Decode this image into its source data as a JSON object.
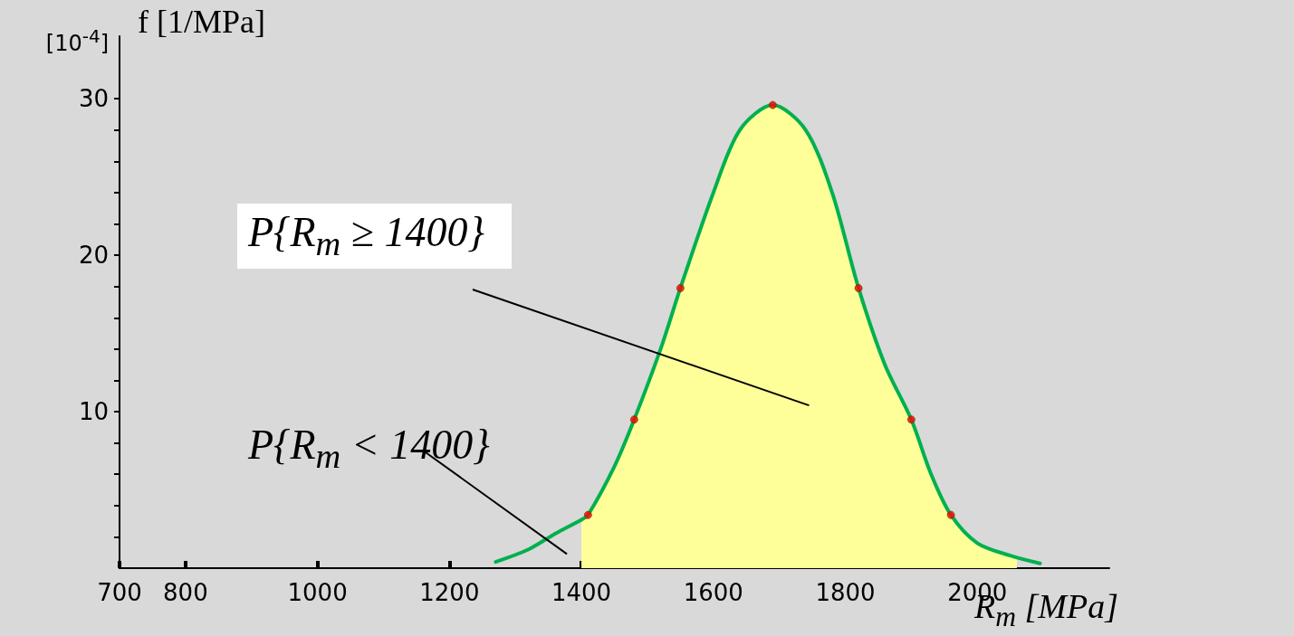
{
  "chart_data": {
    "type": "line",
    "xlabel": "R$_{m}$ [MPa]",
    "ylabel": "f [1/MPa]",
    "annotations": [
      "[10$^{-4}$]",
      "P{R$_{m}$ ≥ 1400}",
      "P{R$_{m}$ < 1400}"
    ],
    "xlim": [
      700,
      2200
    ],
    "xticks": [
      700,
      800,
      1000,
      1200,
      1400,
      1600,
      1800,
      2000
    ],
    "ylim": [
      0,
      34
    ],
    "yticks": [
      {
        "value": 2,
        "label": null
      },
      {
        "value": 4,
        "label": null
      },
      {
        "value": 6,
        "label": null
      },
      {
        "value": 8,
        "label": null
      },
      10,
      {
        "value": 12,
        "label": null
      },
      {
        "value": 14,
        "label": null
      },
      {
        "value": 16,
        "label": null
      },
      {
        "value": 18,
        "label": null
      },
      20,
      {
        "value": 22,
        "label": null
      },
      {
        "value": 24,
        "label": null
      },
      {
        "value": 26,
        "label": null
      },
      {
        "value": 28,
        "label": null
      },
      30
    ],
    "grid": false,
    "series": [
      {
        "type": "area",
        "color": "#ffff99",
        "x": [
          1400,
          1410,
          1450,
          1480,
          1520,
          1550,
          1600,
          1640,
          1690,
          1740,
          1780,
          1820,
          1860,
          1900,
          1930,
          1960,
          2000,
          2060
        ],
        "values": [
          3.1,
          3.4,
          6.5,
          9.5,
          14,
          17.9,
          24,
          28,
          29.6,
          28,
          24,
          17.9,
          13,
          9.5,
          6,
          3.4,
          1.6,
          0.7
        ]
      },
      {
        "color": "#00b050",
        "marker": "none",
        "x": [
          1270,
          1320,
          1360,
          1400,
          1410,
          1450,
          1480,
          1520,
          1550,
          1600,
          1640,
          1690,
          1740,
          1780,
          1820,
          1860,
          1900,
          1930,
          1960,
          2000,
          2050,
          2095
        ],
        "values": [
          0.4,
          1.2,
          2.2,
          3.1,
          3.4,
          6.5,
          9.5,
          14,
          17.9,
          24,
          28,
          29.6,
          28,
          24,
          17.9,
          13,
          9.5,
          6,
          3.4,
          1.6,
          0.8,
          0.3
        ]
      },
      {
        "type": "scatter",
        "color": "#ff0000",
        "marker": "circle",
        "x": [
          1410,
          1480,
          1550,
          1690,
          1820,
          1900,
          1960
        ],
        "values": [
          3.4,
          9.5,
          17.9,
          29.6,
          17.9,
          9.5,
          3.4
        ]
      }
    ]
  }
}
